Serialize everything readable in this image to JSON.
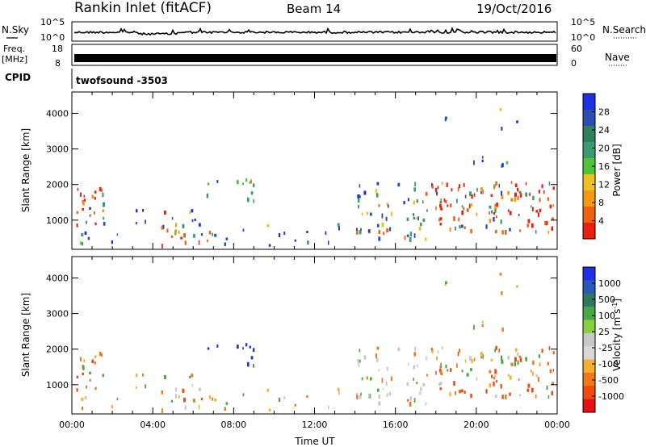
{
  "header": {
    "title": "Rankin Inlet (fitACF)",
    "beam": "Beam 14",
    "date": "19/Oct/2016"
  },
  "nsky_panel": {
    "left_label": "N.Sky",
    "right_label": "N.Search",
    "left_ticks": [
      "10^5",
      "10^0"
    ],
    "right_ticks": [
      "10^5",
      "10^0"
    ]
  },
  "freq_panel": {
    "left_label_line1": "Freq.",
    "left_label_line2": "[MHz]",
    "right_label": "Nave",
    "left_ticks": [
      "18",
      "8"
    ],
    "right_ticks": [
      "60",
      "0"
    ]
  },
  "cpid_panel": {
    "label": "CPID",
    "value": "twofsound -3503"
  },
  "colors": {
    "power": [
      "#1f2fe6",
      "#2b4fb0",
      "#2f7f5a",
      "#3a9a70",
      "#52c23a",
      "#f0c020",
      "#f39a10",
      "#ef6010",
      "#e82010"
    ],
    "velocity": [
      "#1f2fe6",
      "#2a58b8",
      "#2f7a5e",
      "#48a848",
      "#88d040",
      "#c8c8c8",
      "#d8d8d8",
      "#f5b030",
      "#f07818",
      "#ef4a10",
      "#e81010"
    ]
  },
  "chart_data": [
    {
      "type": "heatmap",
      "name": "power",
      "xlabel": "",
      "ylabel": "Slant Range [km]",
      "x_ticks": [
        "00:00",
        "04:00",
        "08:00",
        "12:00",
        "16:00",
        "20:00",
        "00:00"
      ],
      "y_ticks": [
        1000,
        2000,
        3000,
        4000
      ],
      "ylim": [
        180,
        4600
      ],
      "colorbar_label": "Power [dB]",
      "colorbar_ticks": [
        4,
        8,
        12,
        16,
        20,
        24,
        28
      ],
      "colorbar_range": [
        0,
        32
      ]
    },
    {
      "type": "heatmap",
      "name": "velocity",
      "xlabel": "Time UT",
      "ylabel": "Slant Range [km]",
      "x_ticks": [
        "00:00",
        "04:00",
        "08:00",
        "12:00",
        "16:00",
        "20:00",
        "00:00"
      ],
      "y_ticks": [
        1000,
        2000,
        3000,
        4000
      ],
      "ylim": [
        180,
        4600
      ],
      "colorbar_label_text": "Velocity [m s",
      "colorbar_label_sup": "-1",
      "colorbar_label_end": "]",
      "colorbar_ticks": [
        "1000",
        "500",
        "100",
        "25",
        "-25",
        "-100",
        "-500",
        "-1000"
      ]
    }
  ]
}
